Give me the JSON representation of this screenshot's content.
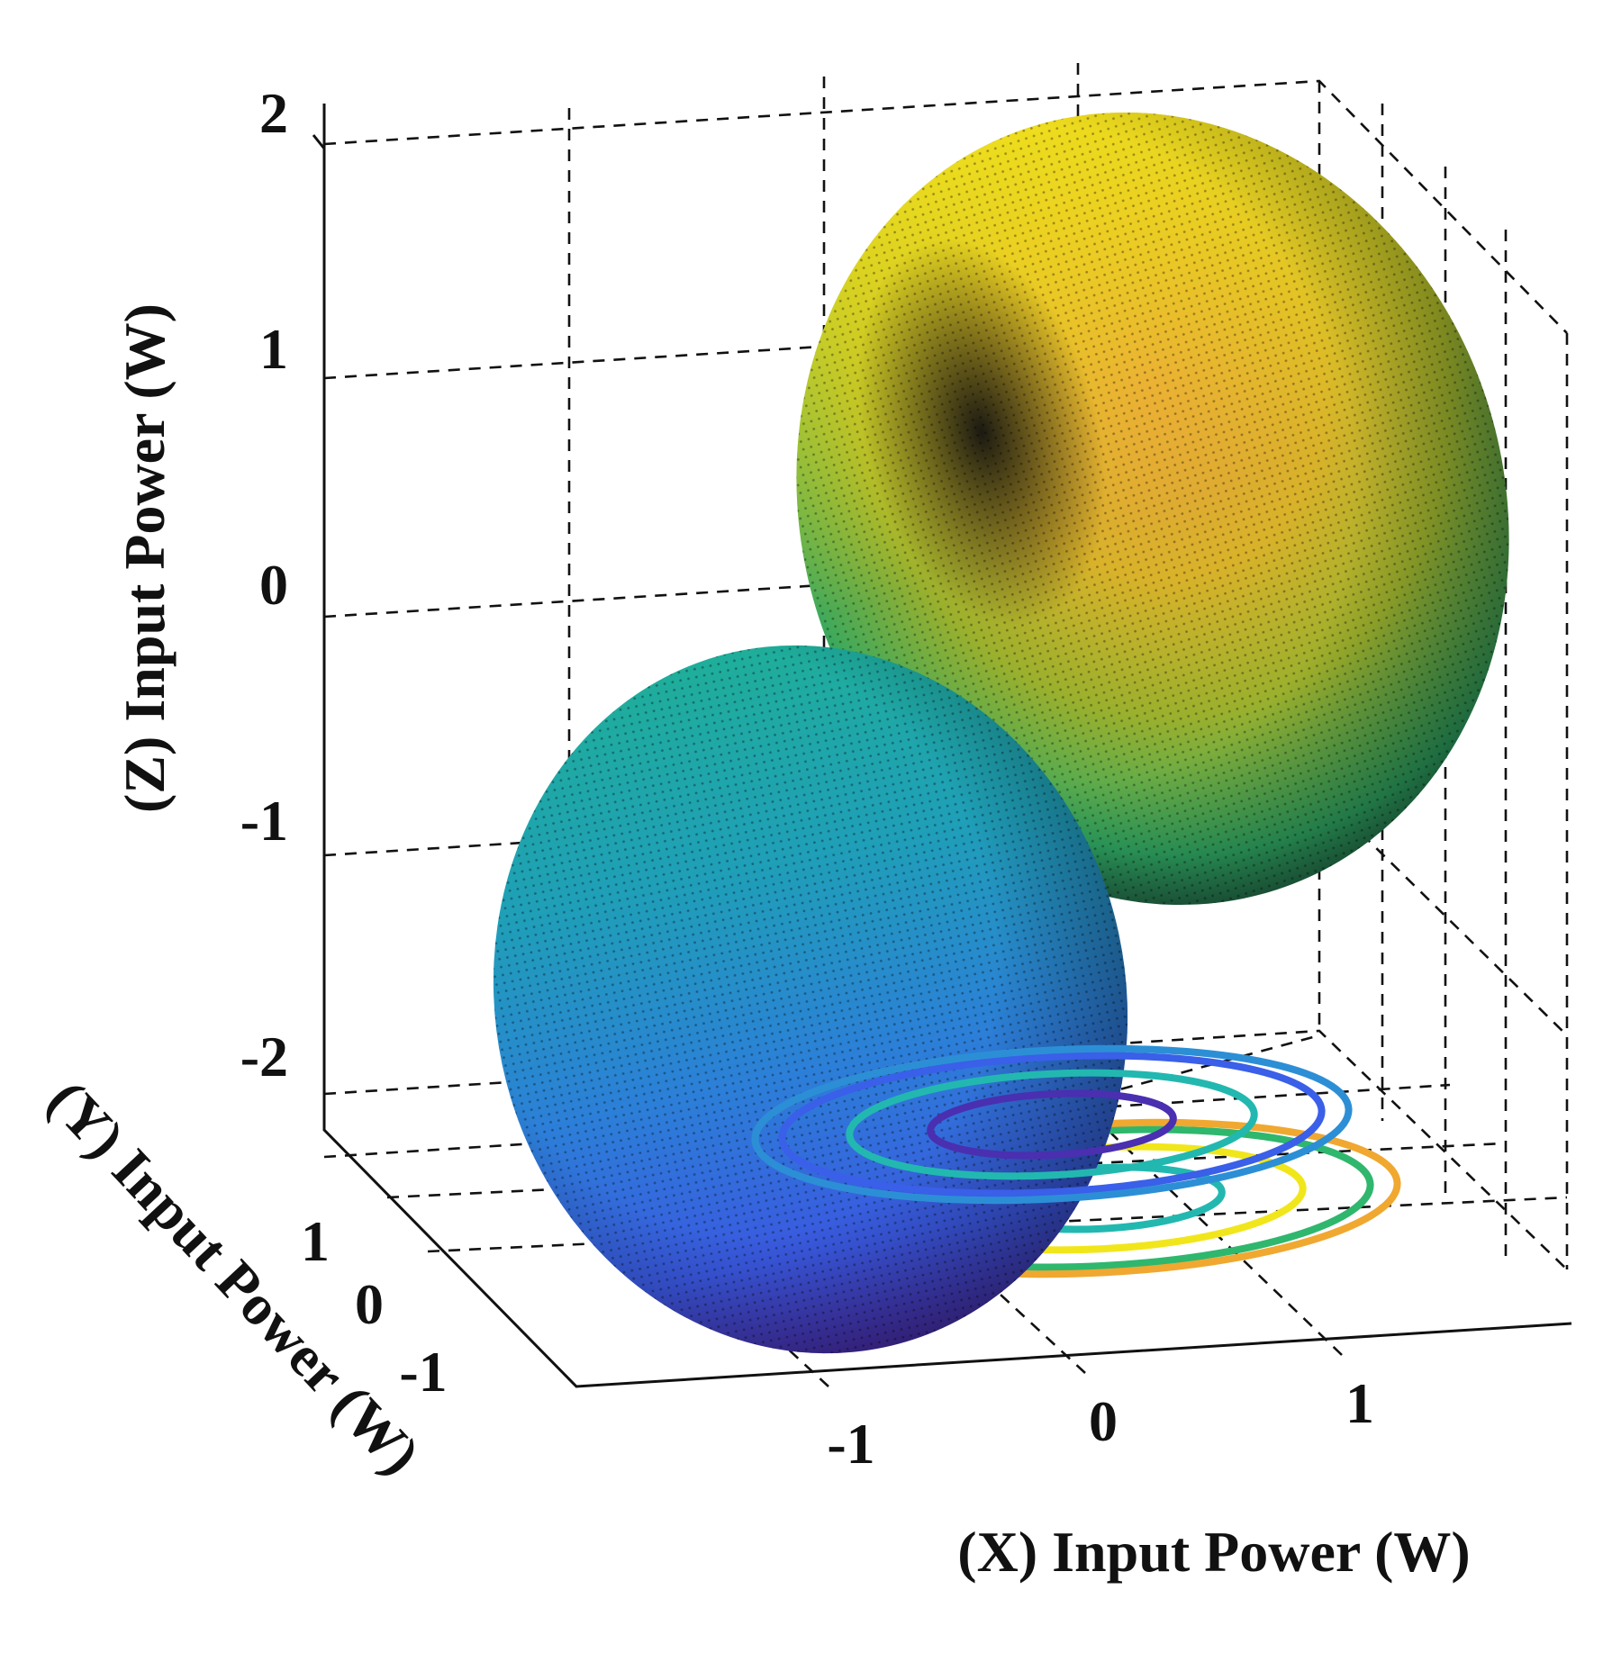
{
  "chart_data": {
    "type": "surface3d",
    "xlabel": "(X) Input Power (W)",
    "ylabel": "(Y) Input Power (W)",
    "zlabel": "(Z) Input Power (W)",
    "x_ticks": [
      "-1",
      "0",
      "1"
    ],
    "y_ticks": [
      "1",
      "0",
      "-1"
    ],
    "z_ticks": [
      "2",
      "1",
      "0",
      "-1",
      "-2"
    ],
    "xlim": [
      -1.8,
      1.8
    ],
    "ylim": [
      -1.5,
      1.5
    ],
    "zlim": [
      -2.2,
      2.2
    ],
    "grid": true,
    "colormap": "parula",
    "surfaces": [
      {
        "name": "upper lobe",
        "center": [
          0.4,
          0.7,
          1.1
        ],
        "radius": 1.2,
        "colors": [
          "#f5e11c",
          "#e6a83a",
          "#1f1f1f",
          "#2fb76d"
        ]
      },
      {
        "name": "lower lobe",
        "center": [
          -0.4,
          -0.7,
          -1.1
        ],
        "radius": 1.2,
        "colors": [
          "#1fb5a0",
          "#2c8fd6",
          "#3a5fe8",
          "#4a2fb0"
        ]
      }
    ],
    "floor_contours": [
      {
        "center": [
          -0.4,
          -0.7
        ],
        "radii": [
          0.45,
          0.75,
          1.0,
          1.1
        ],
        "colors": [
          "#4a2fb0",
          "#22b8b0",
          "#3a5fe8",
          "#2c8fd6"
        ]
      },
      {
        "center": [
          0.4,
          0.7
        ],
        "radii": [
          0.45,
          0.75,
          1.0,
          1.1
        ],
        "colors": [
          "#22b8b0",
          "#f1e61b",
          "#2fb76d",
          "#f0a830"
        ]
      }
    ]
  }
}
